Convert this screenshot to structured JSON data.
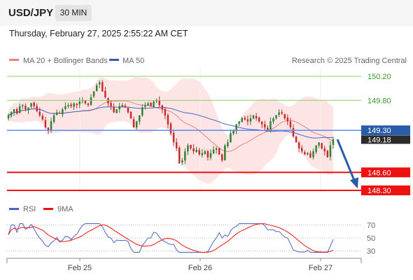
{
  "header": {
    "symbol": "USD/JPY",
    "timeframe": "30 MIN",
    "timestamp": "Thursday, February 27, 2025 2:55:22 AM CET"
  },
  "legend": {
    "ma_bb": "MA 20 + Bollinger Bands",
    "ma50": "MA 50",
    "credit": "Research © 2025 Trading Central"
  },
  "rsi_legend": {
    "rsi": "RSI",
    "ma9": "9MA"
  },
  "colors": {
    "up": "#2e7d32",
    "down": "#c62828",
    "bb_fill": "#fde0e0",
    "ma20": "#f08080",
    "ma50": "#4a66c4",
    "resistance": "#8fcf6a",
    "support": "#ee1111",
    "pivot": "#5b8def",
    "arrow": "#2a5da8"
  },
  "chart_data": [
    {
      "type": "candlestick",
      "x_ticks": [
        "Feb 25",
        "Feb 26",
        "Feb 27"
      ],
      "ylim": [
        148.2,
        150.3
      ],
      "levels": [
        {
          "value": 150.2,
          "label": "150.20",
          "kind": "resistance"
        },
        {
          "value": 149.8,
          "label": "149.80",
          "kind": "resistance"
        },
        {
          "value": 149.3,
          "label": "149.30",
          "kind": "pivot"
        },
        {
          "value": 148.6,
          "label": "148.60",
          "kind": "support"
        },
        {
          "value": 148.3,
          "label": "148.30",
          "kind": "support"
        }
      ],
      "last_price": {
        "value": 149.18,
        "label": "149.18"
      },
      "close_series": [
        149.55,
        149.6,
        149.65,
        149.58,
        149.7,
        149.72,
        149.65,
        149.68,
        149.75,
        149.7,
        149.62,
        149.55,
        149.48,
        149.35,
        149.3,
        149.45,
        149.55,
        149.6,
        149.58,
        149.65,
        149.7,
        149.72,
        149.7,
        149.75,
        149.72,
        149.78,
        149.8,
        149.75,
        149.72,
        149.85,
        149.95,
        150.05,
        150.1,
        149.95,
        149.85,
        149.75,
        149.7,
        149.6,
        149.65,
        149.7,
        149.72,
        149.68,
        149.6,
        149.5,
        149.35,
        149.45,
        149.55,
        149.68,
        149.72,
        149.75,
        149.7,
        149.78,
        149.8,
        149.72,
        149.65,
        149.55,
        149.4,
        149.25,
        149.1,
        149.0,
        148.75,
        148.8,
        148.95,
        149.05,
        149.0,
        148.95,
        148.98,
        148.9,
        148.92,
        148.95,
        148.85,
        148.92,
        148.98,
        149.0,
        148.9,
        148.8,
        149.05,
        149.1,
        149.25,
        149.3,
        149.4,
        149.45,
        149.5,
        149.48,
        149.45,
        149.5,
        149.55,
        149.5,
        149.45,
        149.4,
        149.35,
        149.3,
        149.45,
        149.5,
        149.55,
        149.6,
        149.58,
        149.5,
        149.45,
        149.35,
        149.2,
        149.1,
        149.0,
        148.95,
        148.9,
        148.92,
        148.85,
        148.95,
        149.05,
        149.1,
        149.0,
        148.95,
        148.85,
        149.05,
        149.15
      ]
    },
    {
      "type": "line",
      "title": "RSI",
      "y_ticks": [
        70,
        50,
        30
      ],
      "ylim": [
        20,
        80
      ],
      "series": [
        {
          "name": "RSI"
        },
        {
          "name": "9MA"
        }
      ]
    }
  ]
}
